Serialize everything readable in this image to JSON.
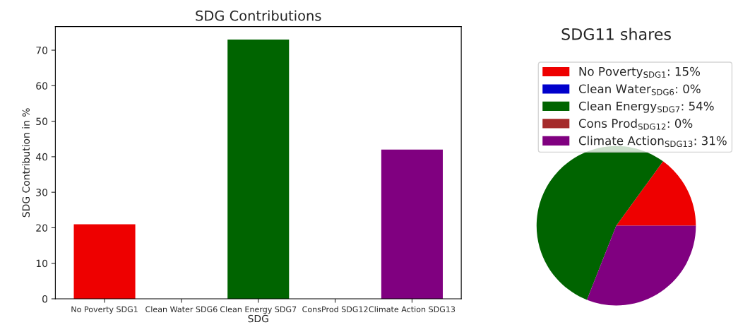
{
  "chart_data": [
    {
      "type": "bar",
      "title": "SDG Contributions",
      "xlabel": "SDG",
      "ylabel": "SDG Contribution in %",
      "categories": [
        "No Poverty SDG1",
        "Clean Water SDG6",
        "Clean Energy SDG7",
        "ConsProd SDG12",
        "Climate Action SDG13"
      ],
      "values": [
        21,
        0,
        73,
        0,
        42
      ],
      "colors": [
        "#ee0000",
        "#0000cc",
        "#006400",
        "#a52a2a",
        "#800080"
      ],
      "ylim": [
        0,
        76.65
      ],
      "yticks": [
        0,
        10,
        20,
        30,
        40,
        50,
        60,
        70
      ],
      "grid": false
    },
    {
      "type": "pie",
      "title": "SDG11 shares",
      "categories": [
        "No Poverty$_{SDG1}$",
        "Clean Water$_{SDG6}$",
        "Clean Energy$_{SDG7}$",
        "Cons Prod$_{SDG12}$",
        "Climate Action$_{SDG13}$"
      ],
      "values": [
        15,
        0,
        54,
        0,
        31
      ],
      "value_labels": [
        ": 15%",
        ": 0%",
        ": 54%",
        ": 0%",
        ": 31%"
      ],
      "colors": [
        "#ee0000",
        "#0000cc",
        "#006400",
        "#a52a2a",
        "#800080"
      ],
      "legend": "top right"
    }
  ]
}
